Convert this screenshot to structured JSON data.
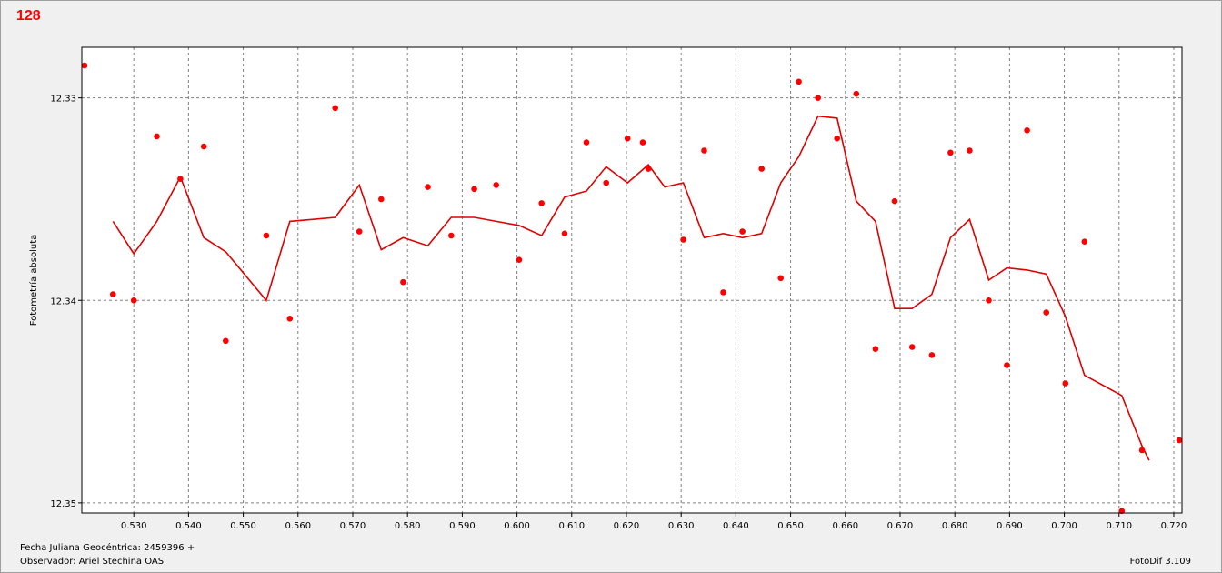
{
  "chart_data": {
    "type": "scatter",
    "title": "128",
    "xlabel": "",
    "ylabel": "Fotometría absoluta",
    "xlim": [
      0.5205,
      0.7215
    ],
    "ylim": [
      12.3275,
      12.3505
    ],
    "y_inverted": true,
    "grid": true,
    "x_ticks": [
      0.53,
      0.54,
      0.55,
      0.56,
      0.57,
      0.58,
      0.59,
      0.6,
      0.61,
      0.62,
      0.63,
      0.64,
      0.65,
      0.66,
      0.67,
      0.68,
      0.69,
      0.7,
      0.71,
      0.72
    ],
    "x_tick_labels": [
      "0.530",
      "0.540",
      "0.550",
      "0.560",
      "0.570",
      "0.580",
      "0.590",
      "0.600",
      "0.610",
      "0.620",
      "0.630",
      "0.640",
      "0.650",
      "0.660",
      "0.670",
      "0.680",
      "0.690",
      "0.700",
      "0.710",
      "0.720"
    ],
    "y_ticks": [
      12.33,
      12.34,
      12.35
    ],
    "y_tick_labels": [
      "12.33",
      "12.34",
      "12.35"
    ],
    "series": [
      {
        "kind": "points",
        "color": "#ff0000",
        "x": [
          0.521,
          0.5262,
          0.53,
          0.5342,
          0.5385,
          0.5428,
          0.5468,
          0.5542,
          0.5585,
          0.5668,
          0.5712,
          0.5752,
          0.5792,
          0.5837,
          0.588,
          0.5922,
          0.5962,
          0.6004,
          0.6045,
          0.6087,
          0.6127,
          0.6163,
          0.6202,
          0.623,
          0.624,
          0.6304,
          0.6342,
          0.6377,
          0.6412,
          0.6447,
          0.6482,
          0.6515,
          0.655,
          0.6585,
          0.662,
          0.6655,
          0.669,
          0.6722,
          0.6758,
          0.6792,
          0.6827,
          0.6862,
          0.6895,
          0.6932,
          0.6967,
          0.7002,
          0.7037,
          0.7105,
          0.7142,
          0.721
        ],
        "y": [
          12.3284,
          12.3397,
          12.34,
          12.3319,
          12.334,
          12.3324,
          12.342,
          12.3368,
          12.3409,
          12.3305,
          12.3366,
          12.335,
          12.3391,
          12.3344,
          12.3368,
          12.3345,
          12.3343,
          12.338,
          12.3352,
          12.3367,
          12.3322,
          12.3342,
          12.332,
          12.3322,
          12.3335,
          12.337,
          12.3326,
          12.3396,
          12.3366,
          12.3335,
          12.3389,
          12.3292,
          12.33,
          12.332,
          12.3298,
          12.3424,
          12.3351,
          12.3423,
          12.3427,
          12.3327,
          12.3326,
          12.34,
          12.3432,
          12.3316,
          12.3406,
          12.3441,
          12.3371,
          12.3504,
          12.3474,
          12.3469
        ]
      },
      {
        "kind": "line",
        "color": "#e00000",
        "x": [
          0.5262,
          0.53,
          0.5342,
          0.5385,
          0.5428,
          0.5468,
          0.5542,
          0.5585,
          0.5628,
          0.5668,
          0.5712,
          0.5752,
          0.5792,
          0.5837,
          0.588,
          0.5922,
          0.5962,
          0.6004,
          0.6045,
          0.6087,
          0.6127,
          0.6163,
          0.6202,
          0.624,
          0.627,
          0.6304,
          0.6342,
          0.6377,
          0.6412,
          0.6447,
          0.6482,
          0.6515,
          0.655,
          0.6585,
          0.662,
          0.6655,
          0.669,
          0.6722,
          0.6758,
          0.6792,
          0.6827,
          0.6862,
          0.6895,
          0.6932,
          0.6967,
          0.7002,
          0.7037,
          0.7105,
          0.7142,
          0.7155
        ],
        "y": [
          12.3361,
          12.3377,
          12.3361,
          12.3339,
          12.3369,
          12.3376,
          12.34,
          12.3361,
          12.336,
          12.3359,
          12.3343,
          12.3375,
          12.3369,
          12.3373,
          12.3359,
          12.3359,
          12.3361,
          12.3363,
          12.3368,
          12.3349,
          12.3346,
          12.3334,
          12.3342,
          12.3333,
          12.3344,
          12.3342,
          12.3369,
          12.3367,
          12.3369,
          12.3367,
          12.3342,
          12.3329,
          12.3309,
          12.331,
          12.3351,
          12.3361,
          12.3404,
          12.3404,
          12.3397,
          12.3369,
          12.336,
          12.339,
          12.3384,
          12.3385,
          12.3387,
          12.3408,
          12.3437,
          12.3447,
          12.3472,
          12.3479
        ]
      }
    ]
  },
  "footer": {
    "line1": "Fecha Juliana Geocéntrica: 2459396 +",
    "line2": "Observador: Ariel Stechina OAS",
    "version": "FotoDif 3.109"
  }
}
